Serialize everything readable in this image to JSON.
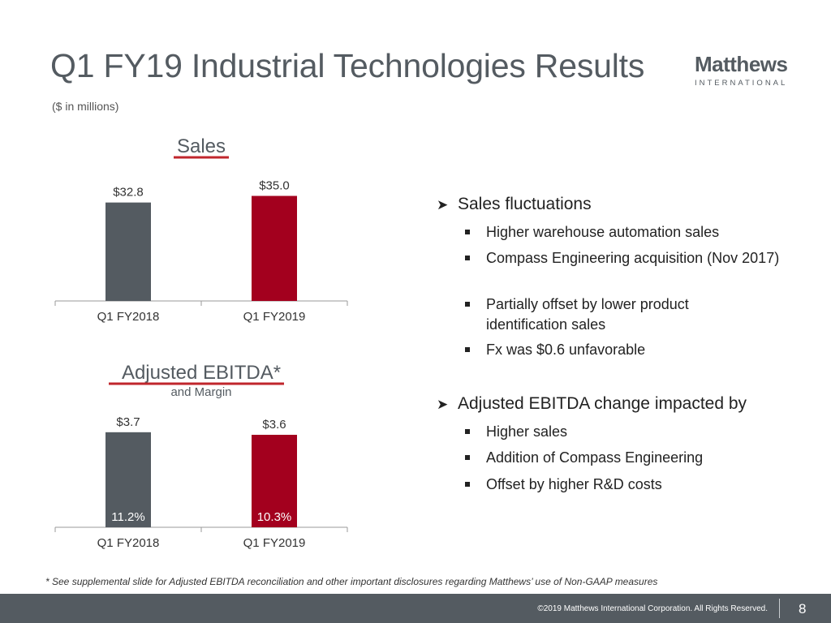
{
  "header": {
    "title": "Q1 FY19 Industrial Technologies Results",
    "subtitle": "($ in millions)"
  },
  "logo": {
    "main": "Matthews",
    "sub": "INTERNATIONAL"
  },
  "colors": {
    "gray_bar": "#545b61",
    "red_bar": "#a3001e",
    "underline": "#c0262c"
  },
  "chart_data": [
    {
      "type": "bar",
      "title": "Sales",
      "categories": [
        "Q1 FY2018",
        "Q1 FY2019"
      ],
      "values": [
        32.8,
        35.0
      ],
      "value_labels": [
        "$32.8",
        "$35.0"
      ],
      "ylim": [
        0,
        40
      ]
    },
    {
      "type": "bar",
      "title": "Adjusted EBITDA",
      "title_suffix": "*",
      "subtitle": "and Margin",
      "categories": [
        "Q1 FY2018",
        "Q1 FY2019"
      ],
      "values": [
        3.7,
        3.6
      ],
      "value_labels": [
        "$3.7",
        "$3.6"
      ],
      "margin_labels": [
        "11.2%",
        "10.3%"
      ],
      "ylim": [
        0,
        4.2
      ]
    }
  ],
  "bullets": [
    {
      "text": "Sales fluctuations",
      "subs": [
        "Higher warehouse automation sales",
        "Compass Engineering acquisition (Nov 2017)",
        "Partially offset by lower product identification sales",
        "Fx was $0.6 unfavorable"
      ]
    },
    {
      "text": "Adjusted EBITDA change impacted by",
      "subs": [
        "Higher sales",
        "Addition of Compass Engineering",
        "Offset by higher R&D costs"
      ]
    }
  ],
  "footnote": "* See supplemental slide for Adjusted EBITDA reconciliation and other important disclosures regarding Matthews’ use of Non-GAAP measures",
  "footer": {
    "copyright": "©2019 Matthews International Corporation. All Rights Reserved.",
    "page": "8"
  }
}
